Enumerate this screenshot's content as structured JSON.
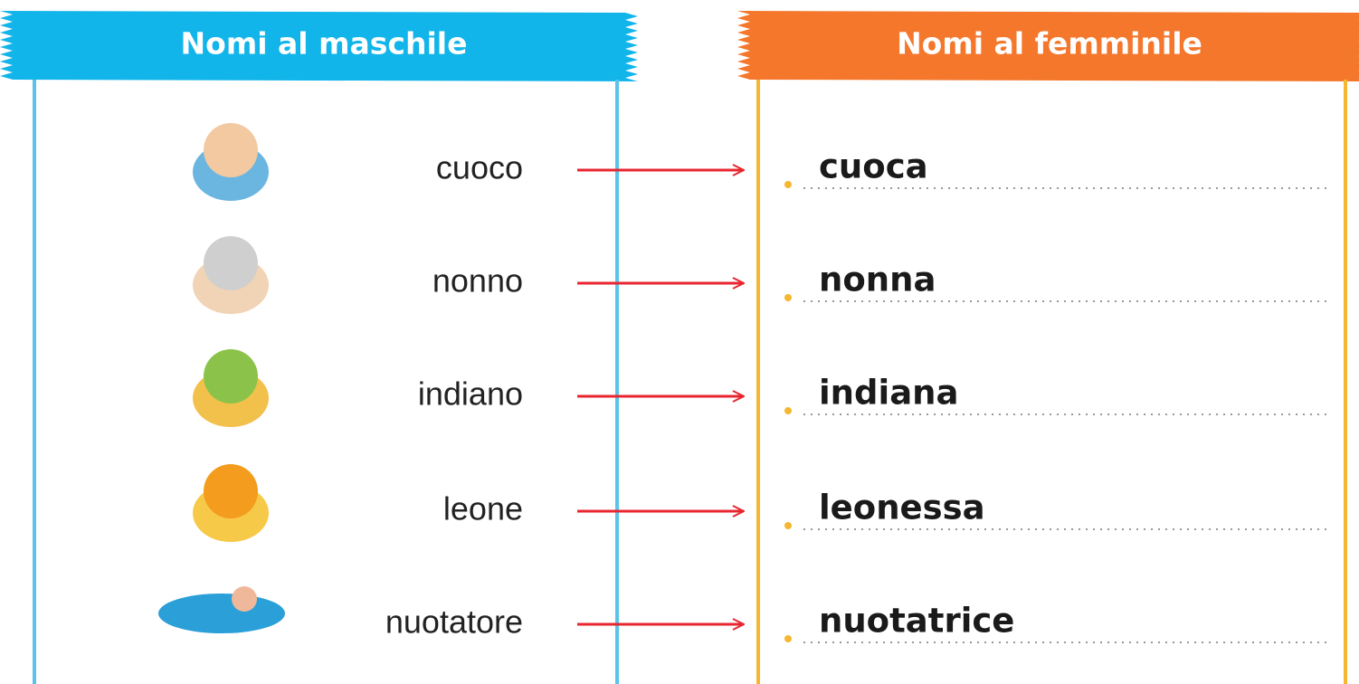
{
  "left": {
    "title": "Nomi al maschile",
    "words": [
      "cuoco",
      "nonno",
      "indiano",
      "leone",
      "nuotatore"
    ]
  },
  "right": {
    "title": "Nomi al femminile",
    "words": [
      "cuoca",
      "nonna",
      "indiana",
      "leonessa",
      "nuotatrice"
    ]
  }
}
